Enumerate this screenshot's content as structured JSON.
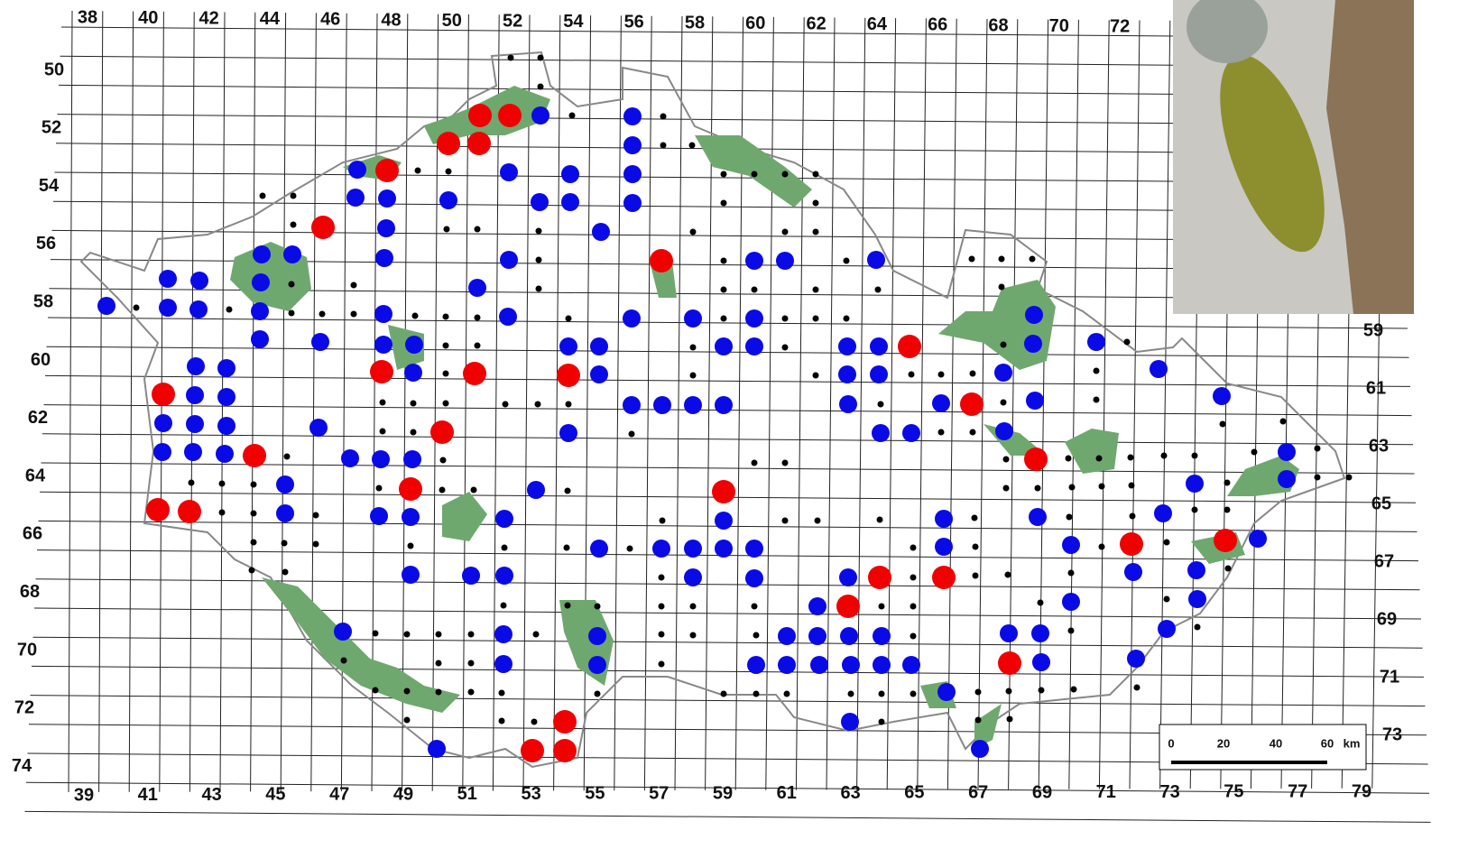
{
  "grid_labels": {
    "top": [
      38,
      40,
      42,
      44,
      46,
      48,
      50,
      52,
      54,
      56,
      58,
      60,
      62,
      64,
      66,
      68,
      70,
      72
    ],
    "left": [
      50,
      52,
      54,
      56,
      58,
      60,
      62,
      64,
      66,
      68,
      70,
      72,
      74
    ],
    "bottom": [
      39,
      41,
      43,
      45,
      47,
      49,
      51,
      53,
      55,
      57,
      59,
      61,
      63,
      65,
      67,
      69,
      71,
      73,
      75,
      77,
      79
    ],
    "right": [
      59,
      61,
      63,
      65,
      67,
      69,
      71,
      73
    ]
  },
  "scale_bar": {
    "ticks": [
      0,
      20,
      40,
      60
    ],
    "unit": "km"
  }
}
